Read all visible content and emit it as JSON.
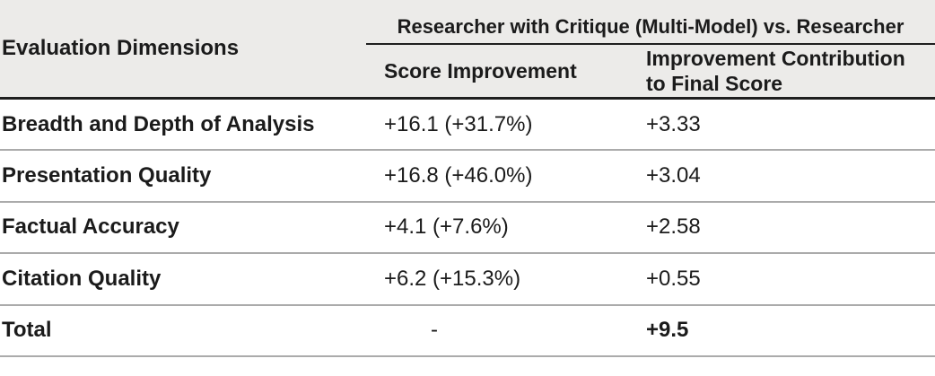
{
  "table": {
    "col1_header": "Evaluation Dimensions",
    "group_header": "Researcher with Critique (Multi-Model) vs. Researcher",
    "col2_header": "Score Improvement",
    "col3_header": "Improvement Contribution to Final Score",
    "rows": [
      {
        "dimension": "Breadth and Depth of Analysis",
        "score_improvement": "+16.1 (+31.7%)",
        "contribution": "+3.33"
      },
      {
        "dimension": "Presentation Quality",
        "score_improvement": "+16.8 (+46.0%)",
        "contribution": "+3.04"
      },
      {
        "dimension": "Factual Accuracy",
        "score_improvement": "+4.1 (+7.6%)",
        "contribution": "+2.58"
      },
      {
        "dimension": "Citation Quality",
        "score_improvement": "+6.2 (+15.3%)",
        "contribution": "+0.55"
      },
      {
        "dimension": "Total",
        "score_improvement": "-",
        "contribution": "+9.5"
      }
    ],
    "colors": {
      "header_bg": "#ECEBE9",
      "body_bg": "#FFFFFF",
      "text": "#1B1B1B",
      "heavy_rule": "#1F1F1F",
      "row_rule": "#ABABAB"
    }
  },
  "chart_data": {
    "type": "table",
    "title": "",
    "column_group": {
      "label": "Researcher with Critique (Multi-Model) vs. Researcher",
      "spans": [
        "Score Improvement",
        "Improvement Contribution to Final Score"
      ]
    },
    "columns": [
      "Evaluation Dimensions",
      "Score Improvement",
      "Improvement Contribution to Final Score"
    ],
    "rows": [
      [
        "Breadth and Depth of Analysis",
        "+16.1 (+31.7%)",
        "+3.33"
      ],
      [
        "Presentation Quality",
        "+16.8 (+46.0%)",
        "+3.04"
      ],
      [
        "Factual Accuracy",
        "+4.1 (+7.6%)",
        "+2.58"
      ],
      [
        "Citation Quality",
        "+6.2 (+15.3%)",
        "+0.55"
      ],
      [
        "Total",
        "-",
        "+9.5"
      ]
    ]
  }
}
